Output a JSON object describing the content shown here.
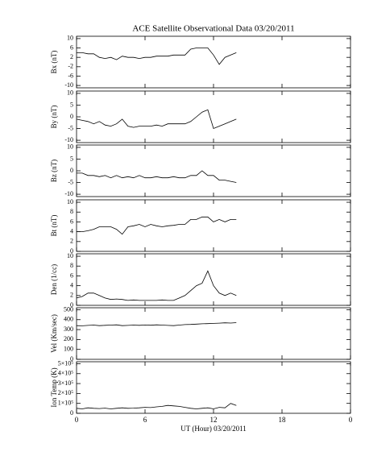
{
  "chart_data": [
    {
      "type": "line",
      "title": "ACE Satellite Observational Data  03/20/2011",
      "ylabel": "Bx (nT)",
      "color": "#000000",
      "x": [
        0,
        0.5,
        1,
        1.5,
        2,
        2.5,
        3,
        3.5,
        4,
        4.5,
        5,
        5.5,
        6,
        6.5,
        7,
        7.5,
        8,
        8.5,
        9,
        9.5,
        10,
        10.5,
        11,
        11.5,
        12,
        12.5,
        13,
        13.5,
        14
      ],
      "xlim": [
        0,
        24
      ],
      "ylim": [
        -11,
        11
      ],
      "yticks": [
        10,
        6,
        2,
        -2,
        -6,
        -10
      ],
      "series": [
        {
          "values": [
            4,
            4,
            3.5,
            3.5,
            2,
            1.5,
            2,
            1,
            2.5,
            2,
            2,
            1.5,
            2,
            2,
            2.5,
            2.5,
            2.5,
            3,
            3,
            3,
            5.5,
            6,
            6,
            6,
            3,
            -1,
            2,
            3,
            4
          ]
        }
      ]
    },
    {
      "type": "line",
      "ylabel": "By (nT)",
      "color": "#000000",
      "x": [
        0,
        0.5,
        1,
        1.5,
        2,
        2.5,
        3,
        3.5,
        4,
        4.5,
        5,
        5.5,
        6,
        6.5,
        7,
        7.5,
        8,
        8.5,
        9,
        9.5,
        10,
        10.5,
        11,
        11.5,
        12,
        12.5,
        13,
        13.5,
        14
      ],
      "xlim": [
        0,
        24
      ],
      "ylim": [
        -11,
        11
      ],
      "yticks": [
        10,
        5,
        0,
        -5,
        -10
      ],
      "series": [
        {
          "values": [
            -1,
            -1.5,
            -2,
            -3,
            -2,
            -3.5,
            -4,
            -3,
            -1,
            -4,
            -4.5,
            -4,
            -4,
            -4,
            -3.5,
            -4,
            -3,
            -3,
            -3,
            -3,
            -2,
            0,
            2,
            3,
            -5,
            -4,
            -3,
            -2,
            -1
          ]
        }
      ]
    },
    {
      "type": "line",
      "ylabel": "Bz (nT)",
      "color": "#000000",
      "x": [
        0,
        0.5,
        1,
        1.5,
        2,
        2.5,
        3,
        3.5,
        4,
        4.5,
        5,
        5.5,
        6,
        6.5,
        7,
        7.5,
        8,
        8.5,
        9,
        9.5,
        10,
        10.5,
        11,
        11.5,
        12,
        12.5,
        13,
        13.5,
        14
      ],
      "xlim": [
        0,
        24
      ],
      "ylim": [
        -11,
        11
      ],
      "yticks": [
        10,
        5,
        0,
        -5,
        -10
      ],
      "series": [
        {
          "values": [
            -1,
            -1,
            -2,
            -2,
            -2.5,
            -2,
            -3,
            -2,
            -3,
            -2.5,
            -3,
            -2,
            -3,
            -3,
            -2.5,
            -3,
            -3,
            -2.5,
            -3,
            -3,
            -2,
            -2,
            0,
            -2,
            -2,
            -4,
            -4,
            -4.5,
            -5
          ]
        }
      ]
    },
    {
      "type": "line",
      "ylabel": "Bt (nT)",
      "color": "#000000",
      "x": [
        0,
        0.5,
        1,
        1.5,
        2,
        2.5,
        3,
        3.5,
        4,
        4.5,
        5,
        5.5,
        6,
        6.5,
        7,
        7.5,
        8,
        8.5,
        9,
        9.5,
        10,
        10.5,
        11,
        11.5,
        12,
        12.5,
        13,
        13.5,
        14
      ],
      "xlim": [
        0,
        24
      ],
      "ylim": [
        0,
        10.5
      ],
      "yticks": [
        10,
        8,
        6,
        4,
        2,
        0
      ],
      "series": [
        {
          "values": [
            4,
            4,
            4.2,
            4.5,
            5,
            5,
            5,
            4.5,
            3.5,
            5,
            5.2,
            5.5,
            5,
            5.5,
            5.2,
            5,
            5.2,
            5.3,
            5.5,
            5.5,
            6.5,
            6.5,
            7,
            7,
            6,
            6.5,
            6,
            6.5,
            6.5
          ]
        }
      ]
    },
    {
      "type": "line",
      "ylabel": "Den (1/cc)",
      "color": "#000000",
      "x": [
        0,
        0.5,
        1,
        1.5,
        2,
        2.5,
        3,
        3.5,
        4,
        4.5,
        5,
        5.5,
        6,
        6.5,
        7,
        7.5,
        8,
        8.5,
        9,
        9.5,
        10,
        10.5,
        11,
        11.5,
        12,
        12.5,
        13,
        13.5,
        14
      ],
      "xlim": [
        0,
        24
      ],
      "ylim": [
        0,
        10.5
      ],
      "yticks": [
        10,
        8,
        6,
        4,
        2,
        0
      ],
      "series": [
        {
          "values": [
            1.5,
            1.8,
            2.5,
            2.5,
            2,
            1.5,
            1.2,
            1.3,
            1.2,
            1,
            1.1,
            1,
            1,
            1,
            1,
            1.1,
            1,
            1,
            1.5,
            2,
            3,
            4,
            4.5,
            7,
            4,
            2.5,
            2,
            2.5,
            2
          ]
        }
      ]
    },
    {
      "type": "line",
      "ylabel": "Vel (Km/sec)",
      "color": "#000000",
      "x": [
        0,
        0.5,
        1,
        1.5,
        2,
        2.5,
        3,
        3.5,
        4,
        4.5,
        5,
        5.5,
        6,
        6.5,
        7,
        7.5,
        8,
        8.5,
        9,
        9.5,
        10,
        10.5,
        11,
        11.5,
        12,
        12.5,
        13,
        13.5,
        14
      ],
      "xlim": [
        0,
        24
      ],
      "ylim": [
        0,
        520
      ],
      "yticks": [
        500,
        400,
        300,
        200,
        100,
        0
      ],
      "series": [
        {
          "values": [
            340,
            338,
            342,
            345,
            340,
            343,
            345,
            348,
            340,
            342,
            345,
            343,
            346,
            344,
            348,
            345,
            342,
            340,
            345,
            350,
            352,
            355,
            358,
            360,
            362,
            365,
            368,
            366,
            370
          ]
        }
      ]
    },
    {
      "type": "line",
      "ylabel": "Ion Temp (K)",
      "xlabel": "UT (Hour)  03/20/2011",
      "color": "#000000",
      "x": [
        0,
        0.5,
        1,
        1.5,
        2,
        2.5,
        3,
        3.5,
        4,
        4.5,
        5,
        5.5,
        6,
        6.5,
        7,
        7.5,
        8,
        8.5,
        9,
        9.5,
        10,
        10.5,
        11,
        11.5,
        12,
        12.5,
        13,
        13.5,
        14
      ],
      "xlim": [
        0,
        24
      ],
      "ylim": [
        0,
        520000
      ],
      "yticks": [
        {
          "value": 500000,
          "label": "5×10⁵"
        },
        {
          "value": 400000,
          "label": "4×10⁵"
        },
        {
          "value": 300000,
          "label": "3×10⁵"
        },
        {
          "value": 200000,
          "label": "2×10⁵"
        },
        {
          "value": 100000,
          "label": "1×10⁵"
        },
        0
      ],
      "xticks": [
        0,
        6,
        12,
        18,
        {
          "value": 24,
          "label": "0"
        }
      ],
      "series": [
        {
          "values": [
            50000,
            45000,
            55000,
            50000,
            48000,
            52000,
            45000,
            50000,
            55000,
            50000,
            52000,
            55000,
            60000,
            58000,
            65000,
            70000,
            80000,
            75000,
            70000,
            60000,
            50000,
            45000,
            50000,
            55000,
            45000,
            60000,
            55000,
            100000,
            80000
          ]
        }
      ]
    }
  ]
}
